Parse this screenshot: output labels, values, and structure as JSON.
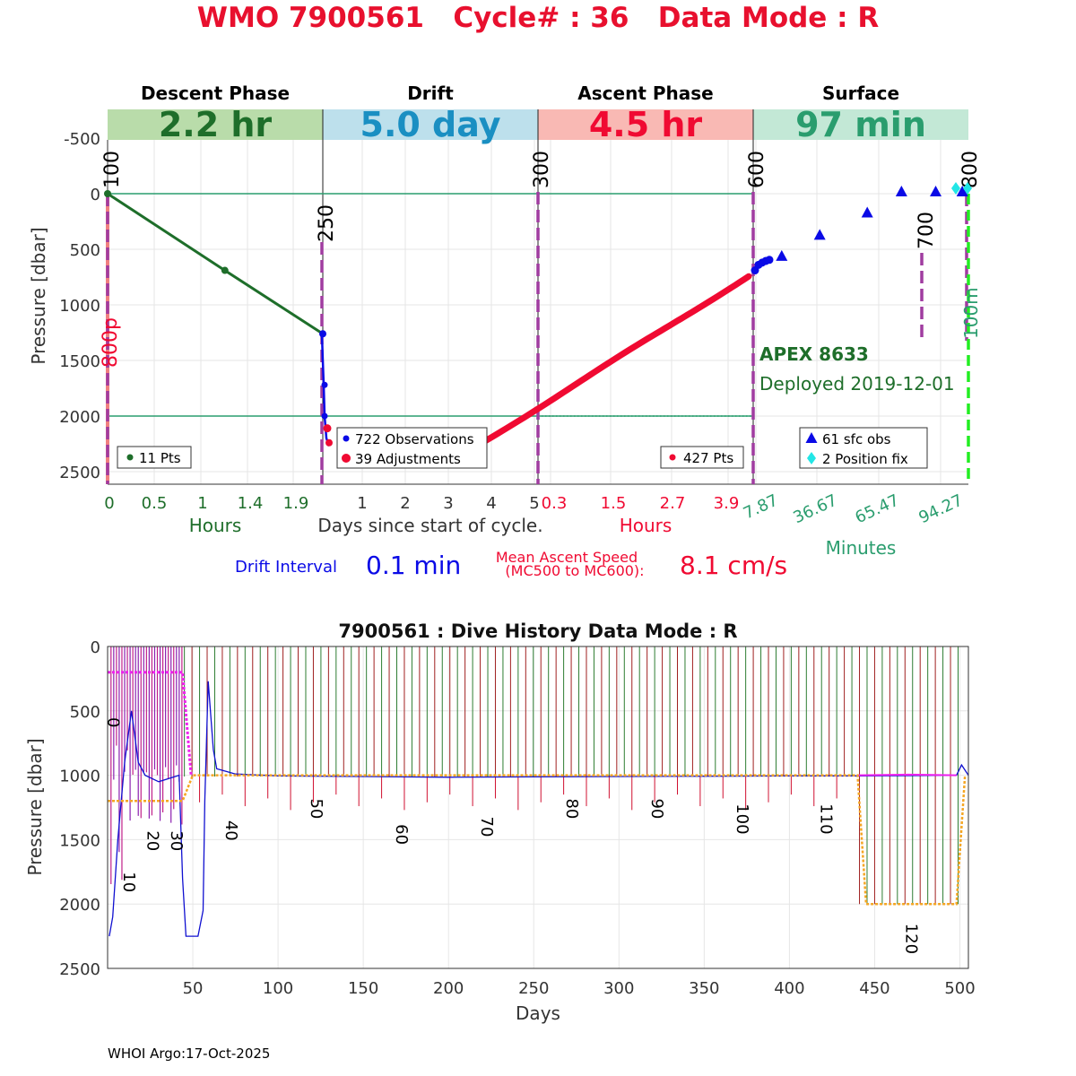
{
  "header": {
    "title": "WMO 7900561   Cycle# : 36   Data Mode : R"
  },
  "footer": {
    "text": "WHOI Argo:17-Oct-2025"
  },
  "colors": {
    "descent": "#1e6e2a",
    "drift": "#0a0ae6",
    "ascent": "#f00a32",
    "surface": "#2a9d6e",
    "purple": "#a03ca0",
    "salmon": "#f08080",
    "green_dash": "#22ee22",
    "band_descent": "#b9dcaa",
    "band_drift": "#bde0ec",
    "band_ascent": "#f9b9b4",
    "band_surface": "#c3e8d6",
    "orange": "#f5a623",
    "magenta": "#ee22ee",
    "darkred": "#a02020"
  },
  "chart_data": [
    {
      "type": "line",
      "name": "cycle-profile",
      "ylabel": "Pressure [dbar]",
      "ylim": [
        -500,
        2600
      ],
      "yticks": [
        -500,
        0,
        500,
        1000,
        1500,
        2000,
        2500
      ],
      "phases": [
        {
          "name": "Descent Phase",
          "duration": "2.2 hr"
        },
        {
          "name": "Drift",
          "duration": "5.0 day"
        },
        {
          "name": "Ascent Phase",
          "duration": "4.5 hr"
        },
        {
          "name": "Surface",
          "duration": "97 min"
        }
      ],
      "x_sections": [
        {
          "label": "Hours",
          "ticks": [
            "0",
            "0.5",
            "1",
            "1.4",
            "1.9"
          ]
        },
        {
          "label": "Days since start of cycle.",
          "ticks": [
            "1",
            "2",
            "3",
            "4",
            "5"
          ]
        },
        {
          "label": "Hours",
          "ticks": [
            "0.3",
            "1.5",
            "2.7",
            "3.9"
          ]
        },
        {
          "label": "Minutes",
          "ticks": [
            "7.87",
            "36.67",
            "65.47",
            "94.27"
          ]
        }
      ],
      "mission_codes": [
        "100",
        "250",
        "300",
        "600",
        "700",
        "800",
        "800p",
        "100m"
      ],
      "horizontal_lines": [
        0,
        2000
      ],
      "descent": {
        "points": [
          [
            0,
            0
          ],
          [
            0.545,
            690
          ],
          [
            1,
            1260
          ]
        ],
        "n_points": 11
      },
      "drift": {
        "start_pressure": 1260,
        "min_pressure": 2270,
        "end_pressure": 2030,
        "observations": 722,
        "adjustments": 39
      },
      "ascent": {
        "start_pressure": 2030,
        "end_pressure": 740,
        "n_points": 427
      },
      "surface": {
        "obs": [
          [
            0.15,
            580
          ],
          [
            0.35,
            390
          ],
          [
            0.6,
            190
          ],
          [
            0.78,
            0
          ],
          [
            0.96,
            0
          ],
          [
            1.1,
            0
          ]
        ],
        "n_obs": 61,
        "position_fixes": 2
      },
      "legends": {
        "descent": "11 Pts",
        "drift_obs": "722 Observations",
        "drift_adj": "39 Adjustments",
        "ascent": "427 Pts",
        "surface_obs": "61 sfc obs",
        "surface_fix": "2 Position fix"
      },
      "annotations": {
        "float_model": "APEX 8633",
        "deployed": "Deployed 2019-12-01",
        "drift_interval_label": "Drift Interval",
        "drift_interval_value": "0.1 min",
        "ascent_speed_label": "Mean Ascent Speed",
        "ascent_speed_sublabel": "(MC500 to MC600):",
        "ascent_speed_value": "8.1 cm/s"
      }
    },
    {
      "type": "line",
      "name": "dive-history",
      "title": "7900561 : Dive History      Data Mode : R",
      "xlabel": "Days",
      "ylabel": "Pressure [dbar]",
      "xlim": [
        0,
        505
      ],
      "ylim": [
        0,
        2500
      ],
      "xticks": [
        50,
        100,
        150,
        200,
        250,
        300,
        350,
        400,
        450,
        500
      ],
      "yticks": [
        0,
        500,
        1000,
        1500,
        2000,
        2500
      ],
      "cycle_labels": [
        {
          "label": "0",
          "day": 3,
          "pressure": 550
        },
        {
          "label": "10",
          "day": 12,
          "pressure": 1750
        },
        {
          "label": "20",
          "day": 26,
          "pressure": 1430
        },
        {
          "label": "30",
          "day": 40,
          "pressure": 1430
        },
        {
          "label": "40",
          "day": 72,
          "pressure": 1350
        },
        {
          "label": "50",
          "day": 122,
          "pressure": 1180
        },
        {
          "label": "60",
          "day": 172,
          "pressure": 1380
        },
        {
          "label": "70",
          "day": 222,
          "pressure": 1320
        },
        {
          "label": "80",
          "day": 272,
          "pressure": 1180
        },
        {
          "label": "90",
          "day": 322,
          "pressure": 1180
        },
        {
          "label": "100",
          "day": 372,
          "pressure": 1220
        },
        {
          "label": "110",
          "day": 421,
          "pressure": 1220
        },
        {
          "label": "120",
          "day": 471,
          "pressure": 2150
        }
      ],
      "park_pressure": [
        [
          0,
          1200
        ],
        [
          44,
          1200
        ],
        [
          50,
          1000
        ],
        [
          440,
          1000
        ],
        [
          445,
          2000
        ],
        [
          498,
          2000
        ],
        [
          503,
          1000
        ]
      ],
      "target_profile": [
        [
          0,
          200
        ],
        [
          44,
          200
        ],
        [
          49,
          1000
        ]
      ],
      "drift_track": [
        [
          1,
          2250
        ],
        [
          3,
          2100
        ],
        [
          6,
          1500
        ],
        [
          10,
          900
        ],
        [
          14,
          500
        ],
        [
          18,
          900
        ],
        [
          22,
          1000
        ],
        [
          30,
          1050
        ],
        [
          42,
          1000
        ],
        [
          44,
          1800
        ],
        [
          46,
          2250
        ],
        [
          53,
          2250
        ],
        [
          56,
          2050
        ],
        [
          57,
          1200
        ],
        [
          59,
          270
        ],
        [
          62,
          800
        ],
        [
          64,
          950
        ],
        [
          75,
          990
        ],
        [
          100,
          1005
        ],
        [
          150,
          1010
        ],
        [
          200,
          1015
        ],
        [
          250,
          1012
        ],
        [
          300,
          1010
        ],
        [
          350,
          1008
        ],
        [
          400,
          1005
        ],
        [
          440,
          1005
        ],
        [
          498,
          1000
        ],
        [
          501,
          920
        ],
        [
          505,
          1000
        ]
      ]
    }
  ]
}
